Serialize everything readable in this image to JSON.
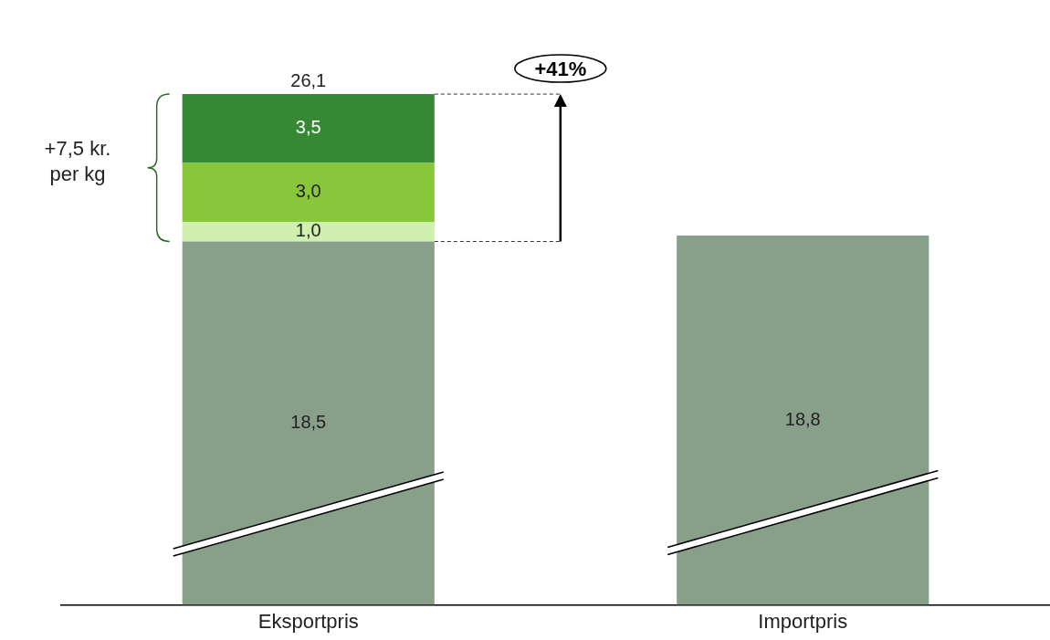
{
  "chart_data": {
    "type": "bar",
    "stacked": true,
    "categories": [
      "Eksportpris",
      "Importpris"
    ],
    "series": [
      {
        "color": "#88a08a",
        "values": [
          18.5,
          18.8
        ],
        "value_labels": [
          "18,5",
          "18,8"
        ]
      },
      {
        "color": "#d0f0b0",
        "values": [
          1.0,
          null
        ],
        "value_labels": [
          "1,0",
          null
        ]
      },
      {
        "color": "#88c63a",
        "values": [
          3.0,
          null
        ],
        "value_labels": [
          "3,0",
          null
        ]
      },
      {
        "color": "#358935",
        "values": [
          3.5,
          null
        ],
        "value_labels": [
          "3,5",
          null
        ]
      }
    ],
    "totals": [
      "26,1",
      null
    ],
    "annotations": [
      "+41%",
      "+7,5 kr. per kg"
    ],
    "tick_labels": "x",
    "grid": false,
    "legend": false
  }
}
